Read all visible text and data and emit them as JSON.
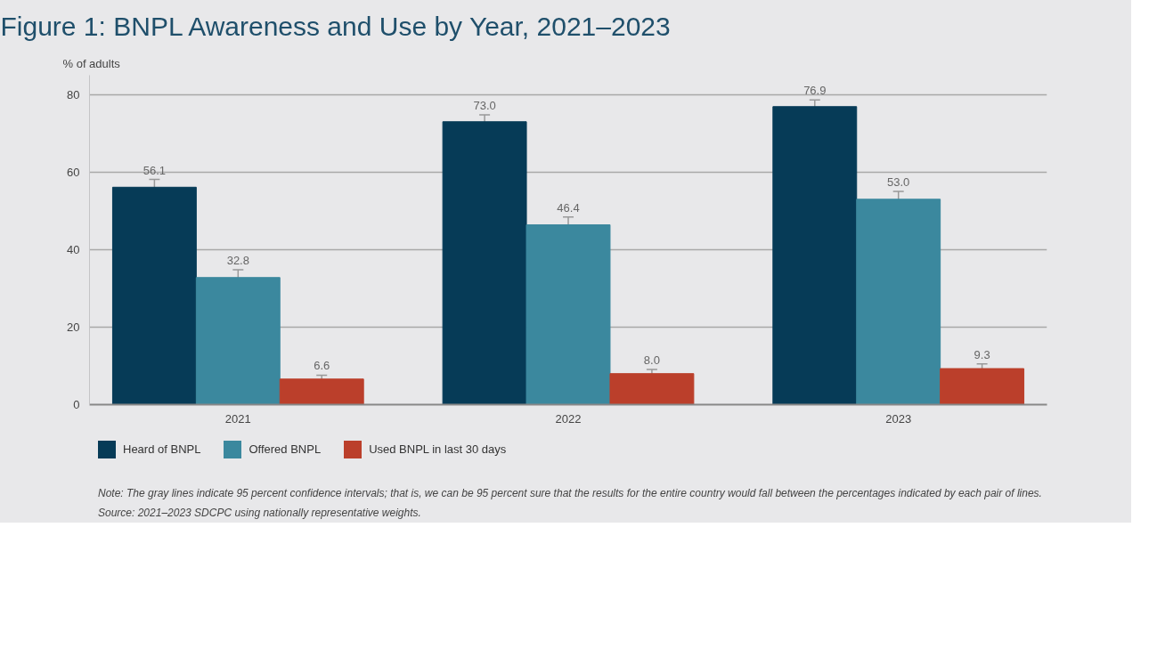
{
  "chart_data": {
    "type": "bar",
    "title": "Figure 1: BNPL Awareness and Use by Year, 2021–2023",
    "ylabel": "% of adults",
    "categories": [
      "2021",
      "2022",
      "2023"
    ],
    "series": [
      {
        "name": "Heard of BNPL",
        "color": "#063b57",
        "values": [
          56.1,
          73.0,
          76.9
        ],
        "errors": [
          2.0,
          1.8,
          1.7
        ],
        "value_labels": [
          "56.1",
          "73.0",
          "76.9"
        ]
      },
      {
        "name": "Offered BNPL",
        "color": "#3b889e",
        "values": [
          32.8,
          46.4,
          53.0
        ],
        "errors": [
          2.0,
          2.0,
          2.0
        ],
        "value_labels": [
          "32.8",
          "46.4",
          "53.0"
        ]
      },
      {
        "name": "Used BNPL in last 30 days",
        "color": "#bb3f2b",
        "values": [
          6.6,
          8.0,
          9.3
        ],
        "errors": [
          1.0,
          1.1,
          1.2
        ],
        "value_labels": [
          "6.6",
          "8.0",
          "9.3"
        ]
      }
    ],
    "ylim": [
      0,
      85
    ],
    "yticks": [
      0,
      20,
      40,
      60,
      80
    ],
    "grid": "y",
    "legend": "bottom",
    "data_labels": true,
    "annotations": [
      "Note: The gray lines indicate 95 percent confidence intervals; that is, we can be 95 percent sure that the results for the entire country would fall between the percentages indicated by each pair of lines.",
      "Source: 2021–2023 SDCPC using nationally representative weights."
    ]
  }
}
